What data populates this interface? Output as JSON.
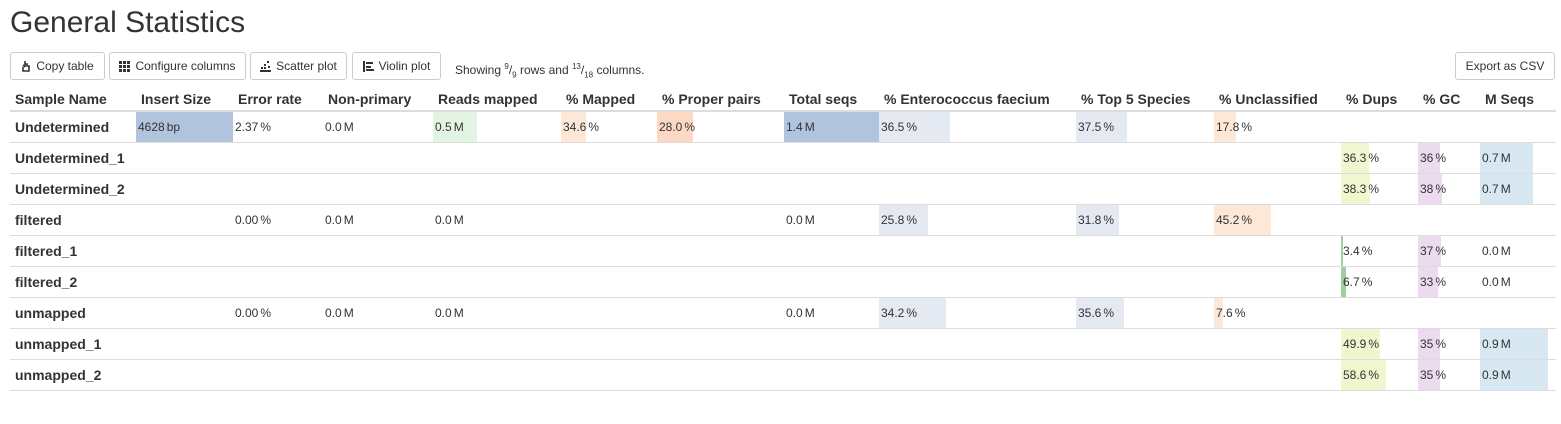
{
  "title": "General Statistics",
  "toolbar": {
    "copy_label": "Copy table",
    "configure_label": "Configure columns",
    "scatter_label": "Scatter plot",
    "violin_label": "Violin plot",
    "showing": {
      "prefix": "Showing ",
      "rows_shown": "9",
      "rows_total": "9",
      "mid": " rows and ",
      "cols_shown": "13",
      "cols_total": "18",
      "suffix": " columns."
    },
    "export_label": "Export as CSV"
  },
  "columns": [
    "Sample Name",
    "Insert Size",
    "Error rate",
    "Non-primary",
    "Reads mapped",
    "% Mapped",
    "% Proper pairs",
    "Total seqs",
    "% Enterococcus faecium",
    "% Top 5 Species",
    "% Unclassified",
    "% Dups",
    "% GC",
    "M Seqs"
  ],
  "bar_colors": [
    "",
    "#b0c4de",
    "#ffffff",
    "#ffffff",
    "#e3f4e3",
    "#fde7d6",
    "#fdd9c4",
    "#b0c4de",
    "#e4e9f2",
    "#e4e9f2",
    "#fde7d6",
    "#f1f6cf",
    "#ecdaee",
    "#d7e8f2"
  ],
  "rows": [
    {
      "name": "Undetermined",
      "cells": [
        {
          "c": 1,
          "t": "4628",
          "u": "bp",
          "f": 1.0
        },
        {
          "c": 2,
          "t": "2.37",
          "u": "%",
          "f": 0
        },
        {
          "c": 3,
          "t": "0.0",
          "u": "M",
          "f": 0
        },
        {
          "c": 4,
          "t": "0.5",
          "u": "M",
          "f": 0.34
        },
        {
          "c": 5,
          "t": "34.6",
          "u": "%",
          "f": 0.26
        },
        {
          "c": 6,
          "t": "28.0",
          "u": "%",
          "f": 0.28
        },
        {
          "c": 7,
          "t": "1.4",
          "u": "M",
          "f": 1.0
        },
        {
          "c": 8,
          "t": "36.5",
          "u": "%",
          "f": 0.36
        },
        {
          "c": 9,
          "t": "37.5",
          "u": "%",
          "f": 0.37
        },
        {
          "c": 10,
          "t": "17.8",
          "u": "%",
          "f": 0.17
        }
      ]
    },
    {
      "name": "Undetermined_1",
      "cells": [
        {
          "c": 11,
          "t": "36.3",
          "u": "%",
          "f": 0.36
        },
        {
          "c": 12,
          "t": "36",
          "u": "%",
          "f": 0.36
        },
        {
          "c": 13,
          "t": "0.7",
          "u": "M",
          "f": 0.7
        }
      ]
    },
    {
      "name": "Undetermined_2",
      "cells": [
        {
          "c": 11,
          "t": "38.3",
          "u": "%",
          "f": 0.38
        },
        {
          "c": 12,
          "t": "38",
          "u": "%",
          "f": 0.38
        },
        {
          "c": 13,
          "t": "0.7",
          "u": "M",
          "f": 0.7
        }
      ]
    },
    {
      "name": "filtered",
      "cells": [
        {
          "c": 2,
          "t": "0.00",
          "u": "%",
          "f": 0
        },
        {
          "c": 3,
          "t": "0.0",
          "u": "M",
          "f": 0
        },
        {
          "c": 4,
          "t": "0.0",
          "u": "M",
          "f": 0
        },
        {
          "c": 7,
          "t": "0.0",
          "u": "M",
          "f": 0
        },
        {
          "c": 8,
          "t": "25.8",
          "u": "%",
          "f": 0.25
        },
        {
          "c": 9,
          "t": "31.8",
          "u": "%",
          "f": 0.31
        },
        {
          "c": 10,
          "t": "45.2",
          "u": "%",
          "f": 0.45
        }
      ]
    },
    {
      "name": "filtered_1",
      "cells": [
        {
          "c": 11,
          "t": "3.4",
          "u": "%",
          "f": 0.03
        },
        {
          "c": 12,
          "t": "37",
          "u": "%",
          "f": 0.37
        },
        {
          "c": 13,
          "t": "0.0",
          "u": "M",
          "f": 0
        }
      ]
    },
    {
      "name": "filtered_2",
      "cells": [
        {
          "c": 11,
          "t": "6.7",
          "u": "%",
          "f": 0.06
        },
        {
          "c": 12,
          "t": "33",
          "u": "%",
          "f": 0.33
        },
        {
          "c": 13,
          "t": "0.0",
          "u": "M",
          "f": 0
        }
      ]
    },
    {
      "name": "unmapped",
      "cells": [
        {
          "c": 2,
          "t": "0.00",
          "u": "%",
          "f": 0
        },
        {
          "c": 3,
          "t": "0.0",
          "u": "M",
          "f": 0
        },
        {
          "c": 4,
          "t": "0.0",
          "u": "M",
          "f": 0
        },
        {
          "c": 7,
          "t": "0.0",
          "u": "M",
          "f": 0
        },
        {
          "c": 8,
          "t": "34.2",
          "u": "%",
          "f": 0.34
        },
        {
          "c": 9,
          "t": "35.6",
          "u": "%",
          "f": 0.35
        },
        {
          "c": 10,
          "t": "7.6",
          "u": "%",
          "f": 0.07
        }
      ]
    },
    {
      "name": "unmapped_1",
      "cells": [
        {
          "c": 11,
          "t": "49.9",
          "u": "%",
          "f": 0.5
        },
        {
          "c": 12,
          "t": "35",
          "u": "%",
          "f": 0.35
        },
        {
          "c": 13,
          "t": "0.9",
          "u": "M",
          "f": 0.9
        }
      ]
    },
    {
      "name": "unmapped_2",
      "cells": [
        {
          "c": 11,
          "t": "58.6",
          "u": "%",
          "f": 0.58
        },
        {
          "c": 12,
          "t": "35",
          "u": "%",
          "f": 0.35
        },
        {
          "c": 13,
          "t": "0.9",
          "u": "M",
          "f": 0.9
        }
      ]
    }
  ]
}
